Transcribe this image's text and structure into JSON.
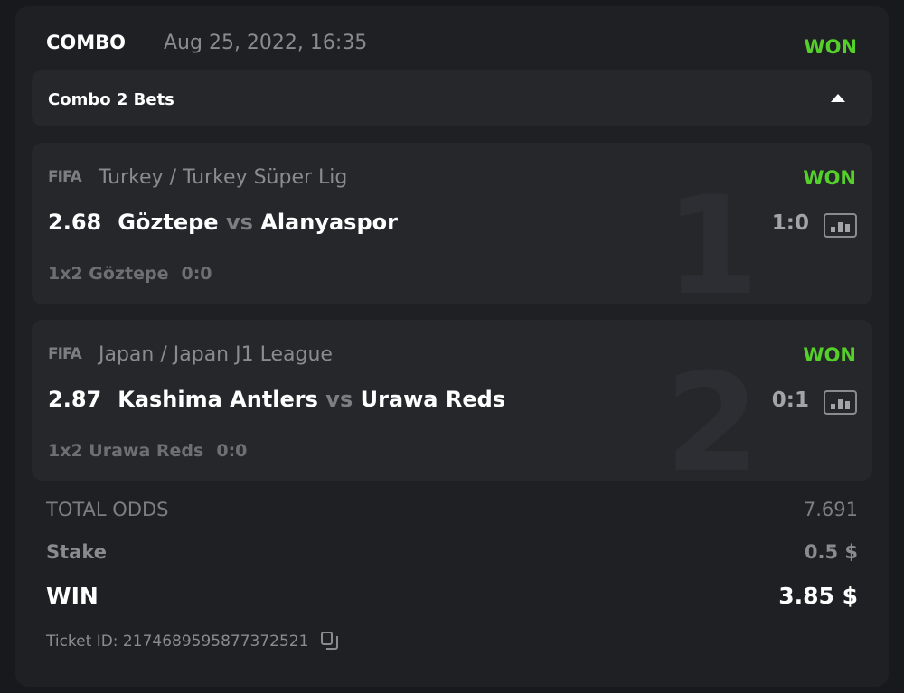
{
  "header": {
    "type": "COMBO",
    "datetime": "Aug 25, 2022, 16:35",
    "status": "WON"
  },
  "combo_toggle": {
    "label": "Combo 2 Bets",
    "icon": "caret-up-icon"
  },
  "bets": [
    {
      "index": "1",
      "provider": "FIFA",
      "league": "Turkey / Turkey Süper Lig",
      "status": "WON",
      "odds": "2.68",
      "home": "Göztepe",
      "vs": "vs",
      "away": "Alanyaspor",
      "score": "1:0",
      "market": "1x2 Göztepe",
      "pick_score": "0:0"
    },
    {
      "index": "2",
      "provider": "FIFA",
      "league": "Japan / Japan J1 League",
      "status": "WON",
      "odds": "2.87",
      "home": "Kashima Antlers",
      "vs": "vs",
      "away": "Urawa Reds",
      "score": "0:1",
      "market": "1x2 Urawa Reds",
      "pick_score": "0:0"
    }
  ],
  "summary": {
    "total_odds_label": "TOTAL ODDS",
    "total_odds": "7.691",
    "stake_label": "Stake",
    "stake": "0.5 $",
    "win_label": "WIN",
    "win": "3.85 $"
  },
  "ticket": {
    "label": "Ticket ID: 2174689595877372521"
  },
  "colors": {
    "won": "#55d02a",
    "background": "#1f2024",
    "bet_card": "#26272b"
  }
}
